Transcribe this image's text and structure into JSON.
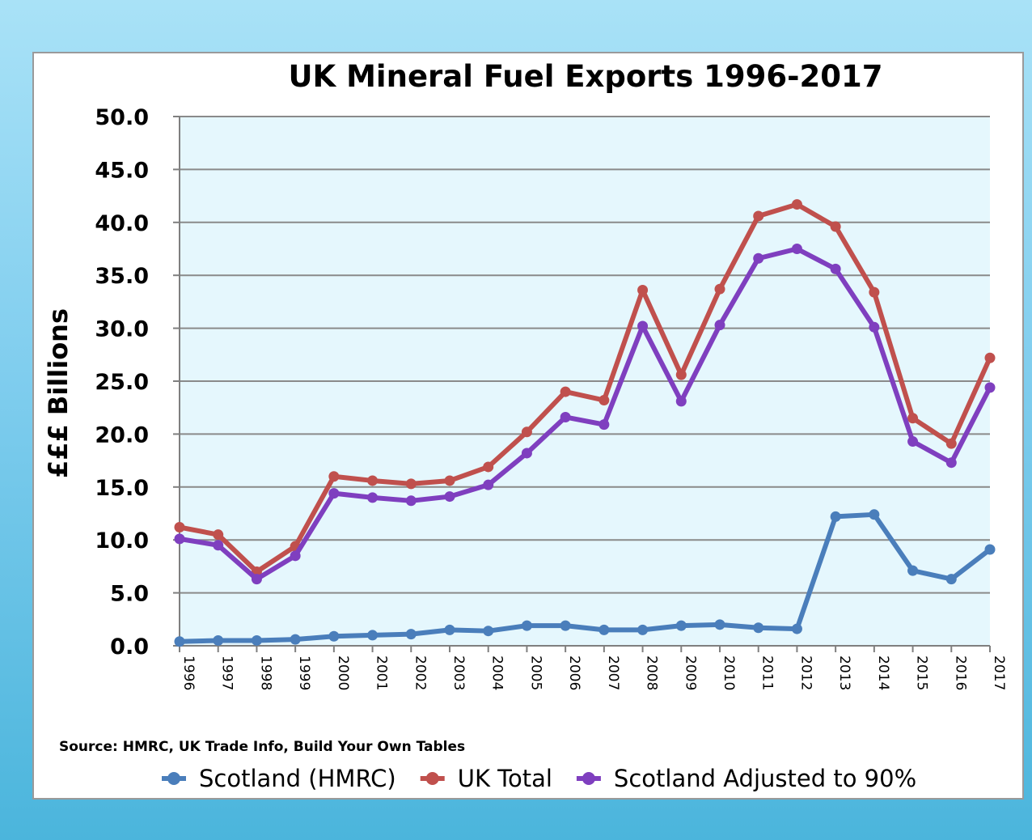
{
  "chart_data": {
    "type": "line",
    "title": "UK Mineral Fuel Exports 1996-2017",
    "ylabel": "£££ Billions",
    "xlabel": "",
    "ylim": [
      0,
      50
    ],
    "y_ticks": [
      "0.0",
      "5.0",
      "10.0",
      "15.0",
      "20.0",
      "25.0",
      "30.0",
      "35.0",
      "40.0",
      "45.0",
      "50.0"
    ],
    "grid": true,
    "legend_position": "bottom",
    "categories": [
      "1996",
      "1997",
      "1998",
      "1999",
      "2000",
      "2001",
      "2002",
      "2003",
      "2004",
      "2005",
      "2006",
      "2007",
      "2008",
      "2009",
      "2010",
      "2011",
      "2012",
      "2013",
      "2014",
      "2015",
      "2016",
      "2017"
    ],
    "series": [
      {
        "name": "Scotland (HMRC)",
        "color": "#4a7ebb",
        "values": [
          0.4,
          0.5,
          0.5,
          0.6,
          0.9,
          1.0,
          1.1,
          1.5,
          1.4,
          1.9,
          1.9,
          1.5,
          1.5,
          1.9,
          2.0,
          1.7,
          1.6,
          12.2,
          12.4,
          7.1,
          6.3,
          9.1
        ]
      },
      {
        "name": "UK Total",
        "color": "#c0504d",
        "values": [
          11.2,
          10.5,
          7.0,
          9.4,
          16.0,
          15.6,
          15.3,
          15.6,
          16.9,
          20.2,
          24.0,
          23.2,
          33.6,
          25.6,
          33.7,
          40.6,
          41.7,
          39.6,
          33.4,
          21.5,
          19.1,
          27.2
        ]
      },
      {
        "name": "Scotland Adjusted to 90%",
        "color": "#7f3fbf",
        "values": [
          10.1,
          9.5,
          6.3,
          8.5,
          14.4,
          14.0,
          13.7,
          14.1,
          15.2,
          18.2,
          21.6,
          20.9,
          30.2,
          23.1,
          30.3,
          36.6,
          37.5,
          35.6,
          30.1,
          19.3,
          17.3,
          24.4
        ]
      }
    ],
    "source_note": "Source: HMRC, UK Trade Info, Build Your Own Tables"
  }
}
